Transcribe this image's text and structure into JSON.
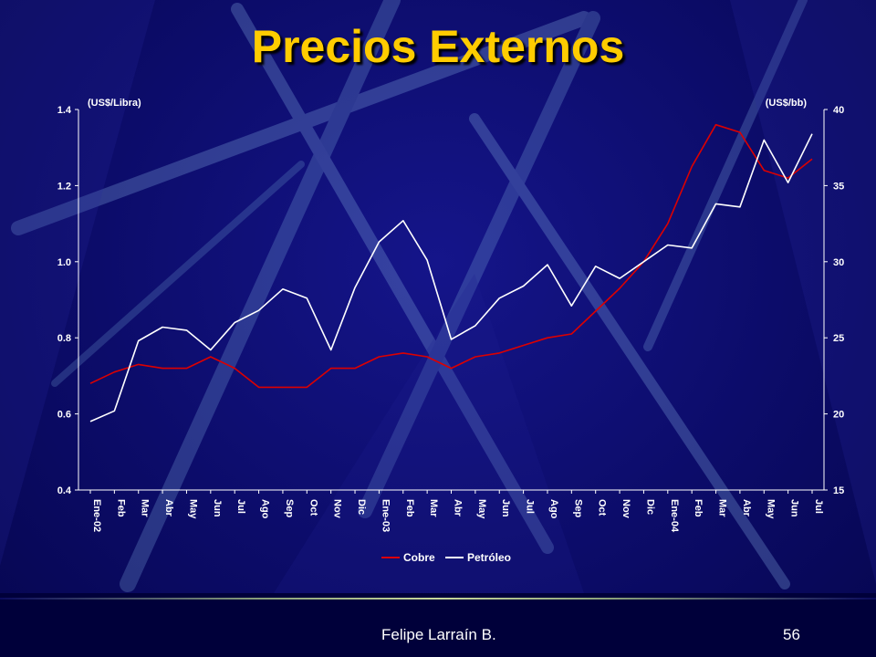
{
  "slide": {
    "title": "Precios Externos",
    "author": "Felipe Larraín B.",
    "page_number": "56"
  },
  "colors": {
    "background": "#0c0c6a",
    "title": "#ffcc00",
    "cobre": "#dd0000",
    "petroleo": "#ffffff",
    "axis": "#ffffff"
  },
  "chart_data": {
    "type": "line",
    "left_axis": {
      "unit_label": "(US$/Libra)",
      "range": [
        0.4,
        1.4
      ],
      "ticks": [
        "0.4",
        "0.6",
        "0.8",
        "1.0",
        "1.2",
        "1.4"
      ]
    },
    "right_axis": {
      "unit_label": "(US$/bb)",
      "range": [
        15,
        40
      ],
      "ticks": [
        "15",
        "20",
        "25",
        "30",
        "35",
        "40"
      ]
    },
    "categories": [
      "Ene-02",
      "Feb",
      "Mar",
      "Abr",
      "May",
      "Jun",
      "Jul",
      "Ago",
      "Sep",
      "Oct",
      "Nov",
      "Dic",
      "Ene-03",
      "Feb",
      "Mar",
      "Abr",
      "May",
      "Jun",
      "Jul",
      "Ago",
      "Sep",
      "Oct",
      "Nov",
      "Dic",
      "Ene-04",
      "Feb",
      "Mar",
      "Abr",
      "May",
      "Jun",
      "Jul"
    ],
    "series": [
      {
        "name": "Cobre",
        "axis": "left",
        "color": "#dd0000",
        "values": [
          0.68,
          0.71,
          0.73,
          0.72,
          0.72,
          0.75,
          0.72,
          0.67,
          0.67,
          0.67,
          0.72,
          0.72,
          0.75,
          0.76,
          0.75,
          0.72,
          0.75,
          0.76,
          0.78,
          0.8,
          0.81,
          0.87,
          0.93,
          1.0,
          1.1,
          1.25,
          1.36,
          1.34,
          1.24,
          1.22,
          1.27
        ]
      },
      {
        "name": "Petróleo",
        "axis": "right",
        "color": "#ffffff",
        "values": [
          19.5,
          20.2,
          24.8,
          25.7,
          25.5,
          24.2,
          26.0,
          26.8,
          28.2,
          27.6,
          24.2,
          28.3,
          31.3,
          32.7,
          30.1,
          24.9,
          25.8,
          27.6,
          28.4,
          29.8,
          27.1,
          29.7,
          28.9,
          30.0,
          31.1,
          30.9,
          33.8,
          33.6,
          38.0,
          35.2,
          38.4
        ]
      }
    ],
    "legend_position": "bottom-center",
    "grid": false
  }
}
